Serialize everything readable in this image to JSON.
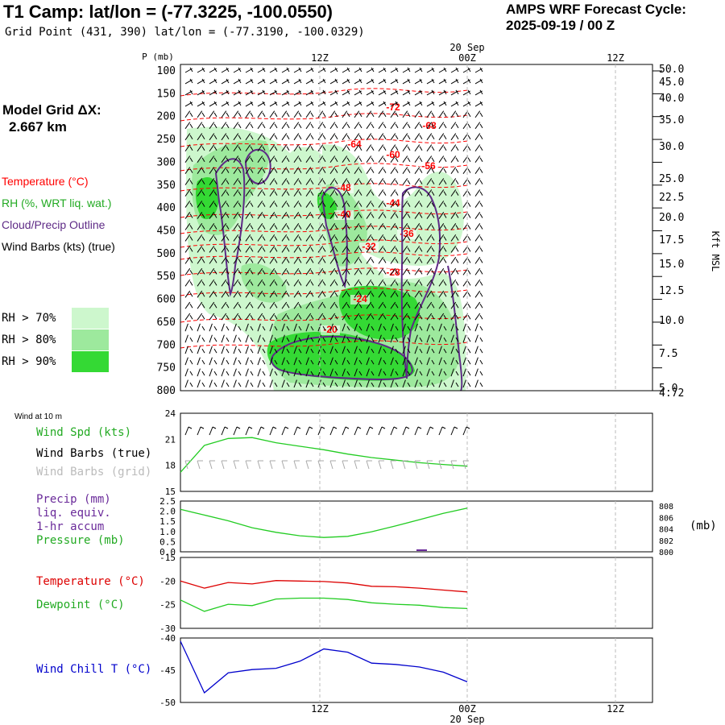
{
  "header": {
    "title": "T1 Camp:  lat/lon = (-77.3225, -100.0550)",
    "subtitle": "Grid Point (431, 390) lat/lon = (-77.3190, -100.0329)",
    "cycle_line1": "AMPS WRF Forecast Cycle:",
    "cycle_line2": "2025-09-19 / 00  Z",
    "model_grid_line1": "Model Grid ΔX:",
    "model_grid_line2": "2.667 km"
  },
  "legend": {
    "temperature": "Temperature (°C)",
    "rh": "RH (%, WRT liq. wat.)",
    "cloud": "Cloud/Precip Outline",
    "wind": "Wind Barbs (kts) (true)",
    "rh70": "RH > 70%",
    "rh80": "RH > 80%",
    "rh90": "RH > 90%"
  },
  "colors": {
    "temperature": "#ff0000",
    "rh70": "#cdf7cd",
    "rh80": "#9de99d",
    "rh90": "#34d934",
    "cloud": "#5e2a86",
    "speed": "#22cc22",
    "dewpoint": "#22cc22",
    "windchill": "#0000cc",
    "grid_barbs": "#aaaaaa"
  },
  "panels": {
    "sfc_title": "Wind at 10 m",
    "wind_spd_label": "Wind Spd (kts)",
    "wind_barbs_true_label": "Wind Barbs (true)",
    "wind_barbs_grid_label": "Wind Barbs (grid)",
    "precip_label1": "Precip (mm)",
    "precip_label2": "liq. equiv.",
    "precip_label3": "1-hr accum",
    "pressure_label": "Pressure (mb)",
    "pressure_unit": "(mb)",
    "temp_label": "Temperature (°C)",
    "dew_label": "Dewpoint (°C)",
    "windchill_label": "Wind Chill T (°C)"
  },
  "chart_data": [
    {
      "type": "line",
      "name": "cross-section",
      "title": "T1 Camp:  lat/lon = (-77.3225, -100.0550)",
      "ylabel": "P (mb)",
      "ylabel_right": "Kft MSL",
      "y_ticks": [
        "100",
        "150",
        "200",
        "250",
        "300",
        "350",
        "400",
        "450",
        "500",
        "550",
        "600",
        "650",
        "700",
        "750",
        "800"
      ],
      "right_ticks": [
        "50.0",
        "45.0",
        "40.0",
        "35.0",
        "30.0",
        "25.0",
        "22.5",
        "20.0",
        "17.5",
        "15.0",
        "12.5",
        "10.0",
        "7.5",
        "5.0",
        "4.72"
      ],
      "x_ticks": [
        "12Z",
        "00Z",
        "12Z"
      ],
      "date_label": "20 Sep",
      "temperature_contour_labels": [
        "-72",
        "-68",
        "-64",
        "-60",
        "-56",
        "-48",
        "-44",
        "-40",
        "-36",
        "-32",
        "-28",
        "-24",
        "-20"
      ]
    },
    {
      "type": "line",
      "name": "wind-speed",
      "ylim": [
        15,
        24
      ],
      "y_ticks": [
        "24",
        "21",
        "18",
        "15"
      ],
      "series": [
        {
          "name": "Wind Spd (kts)",
          "values": [
            17.2,
            20.3,
            21.1,
            21.2,
            20.6,
            20.2,
            19.8,
            19.3,
            18.9,
            18.6,
            18.3,
            18.1,
            17.9
          ]
        }
      ]
    },
    {
      "type": "line",
      "name": "precip-pressure",
      "ylim": [
        0,
        2.5
      ],
      "y_ticks": [
        "2.5",
        "2.0",
        "1.5",
        "1.0",
        "0.5",
        "0.0"
      ],
      "right_ticks": [
        "808",
        "806",
        "804",
        "802",
        "800"
      ],
      "series": [
        {
          "name": "Pressure (mb)",
          "values": [
            807.4,
            806.4,
            805.4,
            804.2,
            803.4,
            802.8,
            802.5,
            802.7,
            803.5,
            804.5,
            805.6,
            806.7,
            807.6
          ]
        }
      ]
    },
    {
      "type": "line",
      "name": "temperature-dewpoint",
      "ylim": [
        -30,
        -15
      ],
      "y_ticks": [
        "-15",
        "-20",
        "-25",
        "-30"
      ],
      "series": [
        {
          "name": "Temperature (°C)",
          "values": [
            -20.0,
            -21.5,
            -20.3,
            -20.6,
            -19.9,
            -20.0,
            -20.1,
            -20.4,
            -21.1,
            -21.2,
            -21.5,
            -21.9,
            -22.3
          ]
        },
        {
          "name": "Dewpoint (°C)",
          "values": [
            -24.0,
            -26.4,
            -24.9,
            -25.2,
            -23.8,
            -23.6,
            -23.6,
            -23.9,
            -24.6,
            -24.9,
            -25.1,
            -25.6,
            -25.8
          ]
        }
      ]
    },
    {
      "type": "line",
      "name": "wind-chill",
      "ylim": [
        -50,
        -40
      ],
      "y_ticks": [
        "-40",
        "-45",
        "-50"
      ],
      "series": [
        {
          "name": "Wind Chill T (°C)",
          "values": [
            -40.5,
            -48.5,
            -45.4,
            -44.9,
            -44.7,
            -43.6,
            -41.7,
            -42.2,
            -43.9,
            -44.1,
            -44.5,
            -45.3,
            -46.8
          ]
        }
      ]
    }
  ]
}
